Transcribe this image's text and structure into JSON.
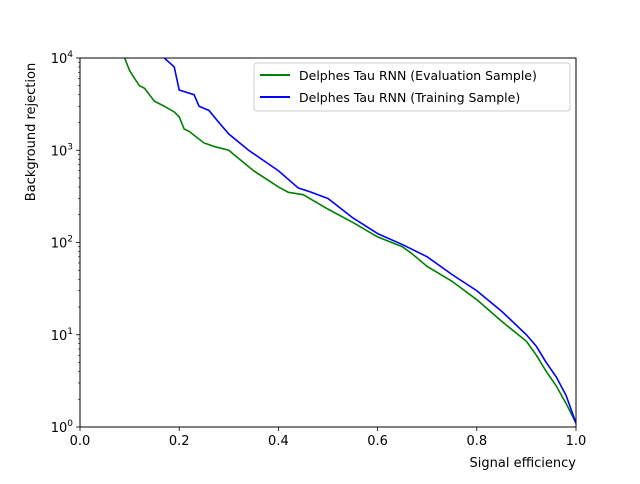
{
  "chart_data": {
    "type": "line",
    "title": "",
    "xlabel": "Signal efficiency",
    "ylabel": "Background rejection",
    "xlim": [
      0.0,
      1.0
    ],
    "ylim": [
      1,
      10000
    ],
    "yscale": "log",
    "grid": false,
    "legend_position": "top-right",
    "x_ticks": [
      {
        "value": 0.0,
        "label": "0.0"
      },
      {
        "value": 0.2,
        "label": "0.2"
      },
      {
        "value": 0.4,
        "label": "0.4"
      },
      {
        "value": 0.6,
        "label": "0.6"
      },
      {
        "value": 0.8,
        "label": "0.8"
      },
      {
        "value": 1.0,
        "label": "1.0"
      }
    ],
    "y_ticks": [
      {
        "value": 1,
        "base": "10",
        "exp": "0"
      },
      {
        "value": 10,
        "base": "10",
        "exp": "1"
      },
      {
        "value": 100,
        "base": "10",
        "exp": "2"
      },
      {
        "value": 1000,
        "base": "10",
        "exp": "3"
      },
      {
        "value": 10000,
        "base": "10",
        "exp": "4"
      }
    ],
    "series": [
      {
        "name": "Delphes Tau RNN (Evaluation Sample)",
        "color": "#008000",
        "x": [
          0.09,
          0.1,
          0.11,
          0.12,
          0.13,
          0.15,
          0.17,
          0.19,
          0.2,
          0.21,
          0.22,
          0.25,
          0.26,
          0.27,
          0.3,
          0.31,
          0.35,
          0.4,
          0.42,
          0.45,
          0.5,
          0.55,
          0.6,
          0.65,
          0.67,
          0.7,
          0.75,
          0.8,
          0.85,
          0.9,
          0.92,
          0.94,
          0.96,
          0.98,
          1.0
        ],
        "y": [
          10000,
          7300,
          6000,
          5000,
          4700,
          3400,
          3000,
          2600,
          2300,
          1700,
          1600,
          1200,
          1150,
          1100,
          1000,
          900,
          600,
          400,
          350,
          330,
          230,
          165,
          115,
          90,
          75,
          55,
          38,
          24,
          14,
          8.5,
          6.0,
          4.0,
          2.8,
          1.8,
          1.1
        ]
      },
      {
        "name": "Delphes Tau RNN (Training Sample)",
        "color": "#0000ff",
        "x": [
          0.17,
          0.19,
          0.2,
          0.23,
          0.24,
          0.26,
          0.28,
          0.3,
          0.34,
          0.4,
          0.44,
          0.46,
          0.5,
          0.55,
          0.6,
          0.65,
          0.7,
          0.75,
          0.8,
          0.85,
          0.9,
          0.92,
          0.94,
          0.96,
          0.98,
          1.0
        ],
        "y": [
          10000,
          8000,
          4500,
          4000,
          3000,
          2700,
          2000,
          1500,
          1000,
          600,
          390,
          360,
          300,
          185,
          125,
          95,
          70,
          45,
          30,
          18,
          10,
          7.5,
          5.0,
          3.5,
          2.2,
          1.1
        ]
      }
    ]
  }
}
